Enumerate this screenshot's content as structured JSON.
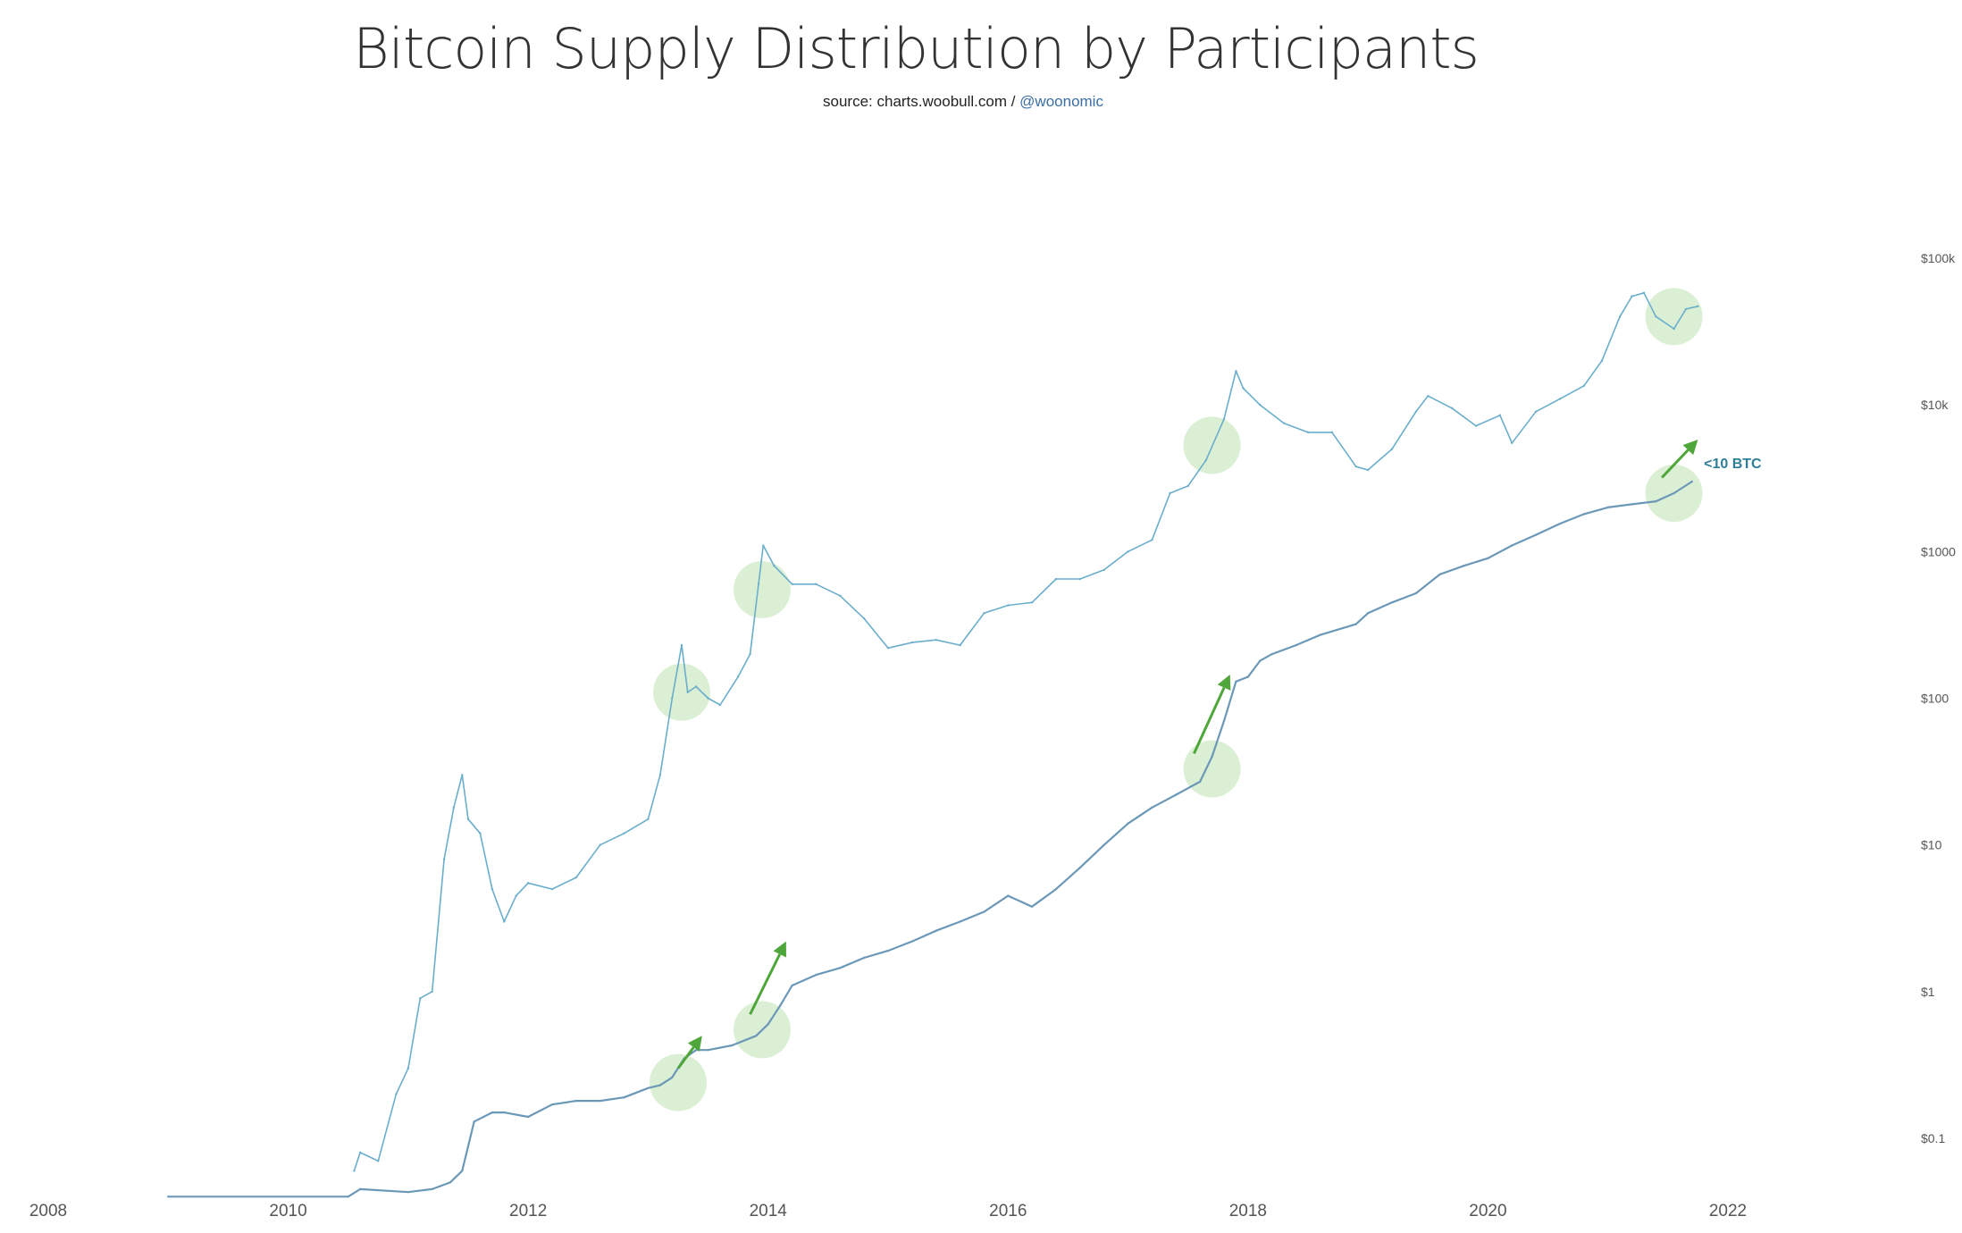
{
  "header": {
    "title": "Bitcoin Supply Distribution by Participants",
    "source_prefix": "source: charts.woobull.com / ",
    "source_handle": "@woonomic"
  },
  "colors": {
    "price_line": "#6aaecb",
    "supply_line": "#6c98b8",
    "highlight": "#cfe9c7",
    "arrow": "#4fa63a",
    "label": "#2e7d99"
  },
  "chart_data": {
    "type": "line",
    "title": "Bitcoin Supply Distribution by Participants",
    "subtitle": "source: charts.woobull.com / @woonomic",
    "xlabel": "",
    "ylabel": "",
    "x_ticks": [
      "2008",
      "2010",
      "2012",
      "2014",
      "2016",
      "2018",
      "2020",
      "2022"
    ],
    "xlim": [
      2008,
      2023.5
    ],
    "y_scale": "log",
    "y_ticks": [
      "$0.1",
      "$1",
      "$10",
      "$100",
      "$1000",
      "$10k",
      "$100k"
    ],
    "y_tick_values": [
      0.1,
      1,
      10,
      100,
      1000,
      10000,
      100000
    ],
    "ylim": [
      0.04,
      100000
    ],
    "grid": false,
    "legend": "none",
    "series": [
      {
        "axis": "right",
        "x": [
          2010.55,
          2010.6,
          2010.75,
          2010.9,
          2011.0,
          2011.1,
          2011.2,
          2011.3,
          2011.38,
          2011.45,
          2011.5,
          2011.6,
          2011.7,
          2011.8,
          2011.9,
          2012.0,
          2012.2,
          2012.4,
          2012.6,
          2012.8,
          2013.0,
          2013.1,
          2013.2,
          2013.28,
          2013.33,
          2013.4,
          2013.5,
          2013.6,
          2013.75,
          2013.85,
          2013.92,
          2013.96,
          2014.05,
          2014.2,
          2014.4,
          2014.6,
          2014.8,
          2015.0,
          2015.2,
          2015.4,
          2015.6,
          2015.8,
          2016.0,
          2016.2,
          2016.4,
          2016.6,
          2016.8,
          2017.0,
          2017.2,
          2017.35,
          2017.5,
          2017.65,
          2017.8,
          2017.9,
          2017.96,
          2018.1,
          2018.3,
          2018.5,
          2018.7,
          2018.9,
          2019.0,
          2019.2,
          2019.4,
          2019.5,
          2019.7,
          2019.9,
          2020.1,
          2020.2,
          2020.4,
          2020.6,
          2020.8,
          2020.95,
          2021.1,
          2021.2,
          2021.3,
          2021.4,
          2021.55,
          2021.65,
          2021.75
        ],
        "values": [
          0.06,
          0.08,
          0.07,
          0.2,
          0.3,
          0.9,
          1.0,
          8.0,
          18.0,
          30.0,
          15.0,
          12.0,
          5.0,
          3.0,
          4.5,
          5.5,
          5.0,
          6.0,
          10.0,
          12.0,
          15.0,
          30.0,
          100.0,
          230.0,
          110.0,
          120.0,
          100.0,
          90.0,
          140.0,
          200.0,
          600.0,
          1100.0,
          800.0,
          600.0,
          600.0,
          500.0,
          350.0,
          220.0,
          240.0,
          250.0,
          230.0,
          380.0,
          430.0,
          450.0,
          650.0,
          650.0,
          750.0,
          1000.0,
          1200.0,
          2500.0,
          2800.0,
          4200.0,
          8000.0,
          17000.0,
          13000.0,
          10000.0,
          7500.0,
          6500.0,
          6500.0,
          3800.0,
          3600.0,
          5000.0,
          9000.0,
          11500.0,
          9500.0,
          7200.0,
          8500.0,
          5500.0,
          9000.0,
          11000.0,
          13500.0,
          20000.0,
          40000.0,
          55000.0,
          58000.0,
          40000.0,
          33000.0,
          45000.0,
          47000.0
        ]
      },
      {
        "axis": "right",
        "x": [
          2009.0,
          2010.5,
          2010.6,
          2011.0,
          2011.2,
          2011.35,
          2011.45,
          2011.55,
          2011.7,
          2011.8,
          2012.0,
          2012.2,
          2012.4,
          2012.6,
          2012.8,
          2013.0,
          2013.1,
          2013.2,
          2013.3,
          2013.4,
          2013.5,
          2013.7,
          2013.9,
          2014.0,
          2014.1,
          2014.2,
          2014.4,
          2014.6,
          2014.8,
          2015.0,
          2015.2,
          2015.4,
          2015.6,
          2015.8,
          2016.0,
          2016.2,
          2016.4,
          2016.6,
          2016.8,
          2017.0,
          2017.2,
          2017.4,
          2017.6,
          2017.7,
          2017.8,
          2017.9,
          2018.0,
          2018.1,
          2018.2,
          2018.4,
          2018.6,
          2018.9,
          2019.0,
          2019.2,
          2019.4,
          2019.6,
          2019.8,
          2020.0,
          2020.2,
          2020.4,
          2020.6,
          2020.8,
          2021.0,
          2021.2,
          2021.4,
          2021.55,
          2021.7
        ],
        "values": [
          0.04,
          0.04,
          0.045,
          0.043,
          0.045,
          0.05,
          0.06,
          0.13,
          0.15,
          0.15,
          0.14,
          0.17,
          0.18,
          0.18,
          0.19,
          0.22,
          0.23,
          0.26,
          0.35,
          0.4,
          0.4,
          0.43,
          0.5,
          0.6,
          0.8,
          1.1,
          1.3,
          1.45,
          1.7,
          1.9,
          2.2,
          2.6,
          3.0,
          3.5,
          4.5,
          3.8,
          5.0,
          7.0,
          10.0,
          14.0,
          18.0,
          22.0,
          27.0,
          40.0,
          70.0,
          130.0,
          140.0,
          180.0,
          200.0,
          230.0,
          270.0,
          320.0,
          380.0,
          450.0,
          520.0,
          700.0,
          800.0,
          900.0,
          1100.0,
          1300.0,
          1550.0,
          1800.0,
          2000.0,
          2100.0,
          2200.0,
          2500.0,
          3000.0
        ]
      }
    ],
    "annotations": [
      {
        "text": "<10 BTC"
      }
    ],
    "highlight_points": [
      {
        "x": 2013.28,
        "y": 110
      },
      {
        "x": 2013.95,
        "y": 550
      },
      {
        "x": 2017.7,
        "y": 5300
      },
      {
        "x": 2021.55,
        "y": 40000
      },
      {
        "x": 2013.25,
        "y": 0.24
      },
      {
        "x": 2013.95,
        "y": 0.55
      },
      {
        "x": 2017.7,
        "y": 33
      },
      {
        "x": 2021.55,
        "y": 2500
      }
    ],
    "arrows": [
      {
        "from": [
          2013.25,
          0.3
        ],
        "to": [
          2013.45,
          0.5
        ]
      },
      {
        "from": [
          2013.85,
          0.7
        ],
        "to": [
          2014.15,
          2.2
        ]
      },
      {
        "from": [
          2017.55,
          42
        ],
        "to": [
          2017.85,
          145
        ]
      },
      {
        "from": [
          2021.45,
          3200
        ],
        "to": [
          2021.75,
          5800
        ]
      }
    ]
  }
}
